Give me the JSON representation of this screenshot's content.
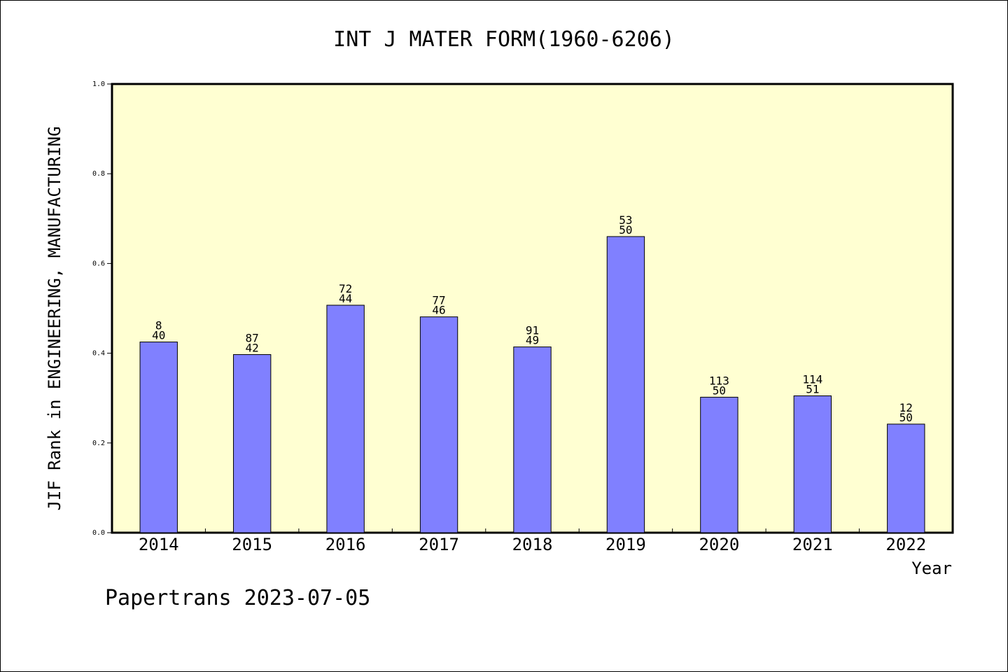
{
  "chart_data": {
    "type": "bar",
    "title": "INT J MATER FORM(1960-6206)",
    "xlabel": "Year",
    "ylabel": "JIF Rank in ENGINEERING, MANUFACTURING",
    "ylim": [
      0,
      1.0
    ],
    "yticks": [
      "0.0",
      "0.2",
      "0.4",
      "0.6",
      "0.8",
      "1.0"
    ],
    "grid": false,
    "categories": [
      "2014",
      "2015",
      "2016",
      "2017",
      "2018",
      "2019",
      "2020",
      "2021",
      "2022"
    ],
    "values": [
      0.425,
      0.397,
      0.507,
      0.481,
      0.414,
      0.66,
      0.302,
      0.305,
      0.242
    ],
    "rank_labels": [
      "8",
      "87",
      "72",
      "77",
      "91",
      "53",
      "113",
      "114",
      "12"
    ],
    "total_labels": [
      "40",
      "42",
      "44",
      "46",
      "49",
      "50",
      "50",
      "51",
      "50"
    ],
    "colors": {
      "bar": "#8080ff",
      "plot_background": "#ffffd2",
      "axes": "#000000"
    }
  },
  "footer": {
    "watermark": "Papertrans 2023-07-05"
  }
}
